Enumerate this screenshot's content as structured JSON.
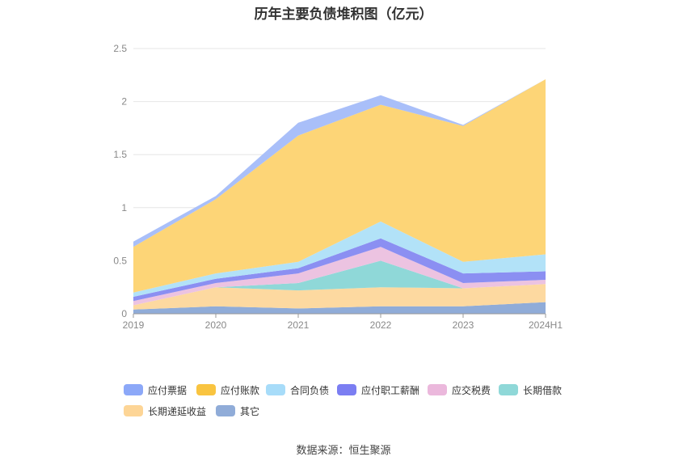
{
  "title": "历年主要负债堆积图（亿元）",
  "source": "数据来源：恒生聚源",
  "chart_data": {
    "type": "area",
    "stacked": true,
    "categories": [
      "2019",
      "2020",
      "2021",
      "2022",
      "2023",
      "2024H1"
    ],
    "y_ticks": [
      "0",
      "0.5",
      "1",
      "1.5",
      "2",
      "2.5"
    ],
    "ylim": [
      0,
      2.5
    ],
    "grid": true,
    "legend_position": "bottom",
    "series": [
      {
        "name": "其它",
        "color": "#90acd8",
        "values": [
          0.04,
          0.07,
          0.05,
          0.07,
          0.07,
          0.11
        ]
      },
      {
        "name": "长期递延收益",
        "color": "#fdd9a0",
        "values": [
          0.04,
          0.18,
          0.17,
          0.18,
          0.17,
          0.17
        ]
      },
      {
        "name": "长期借款",
        "color": "#8fd8d8",
        "values": [
          0.0,
          0.0,
          0.07,
          0.25,
          0.0,
          0.0
        ]
      },
      {
        "name": "应交税费",
        "color": "#ecc3e1",
        "values": [
          0.04,
          0.04,
          0.09,
          0.13,
          0.05,
          0.04
        ]
      },
      {
        "name": "应付职工薪酬",
        "color": "#8b8ff2",
        "values": [
          0.04,
          0.04,
          0.05,
          0.08,
          0.09,
          0.08
        ]
      },
      {
        "name": "合同负债",
        "color": "#b2e2f8",
        "values": [
          0.04,
          0.05,
          0.06,
          0.16,
          0.11,
          0.16
        ]
      },
      {
        "name": "应付账款",
        "color": "#fdd577",
        "values": [
          0.43,
          0.7,
          1.19,
          1.1,
          1.28,
          1.65
        ]
      },
      {
        "name": "应付票据",
        "color": "#a9bff9",
        "values": [
          0.05,
          0.03,
          0.12,
          0.09,
          0.01,
          0.0
        ]
      }
    ],
    "legend": [
      {
        "name": "应付票据",
        "color": "#8ca8f8"
      },
      {
        "name": "应付账款",
        "color": "#f9c440"
      },
      {
        "name": "合同负债",
        "color": "#a7dcf9"
      },
      {
        "name": "应付职工薪酬",
        "color": "#7b7ef2"
      },
      {
        "name": "应交税费",
        "color": "#ebb8dc"
      },
      {
        "name": "长期借款",
        "color": "#8fd8d8"
      },
      {
        "name": "长期递延收益",
        "color": "#fdd596"
      },
      {
        "name": "其它",
        "color": "#90acd8"
      }
    ]
  }
}
